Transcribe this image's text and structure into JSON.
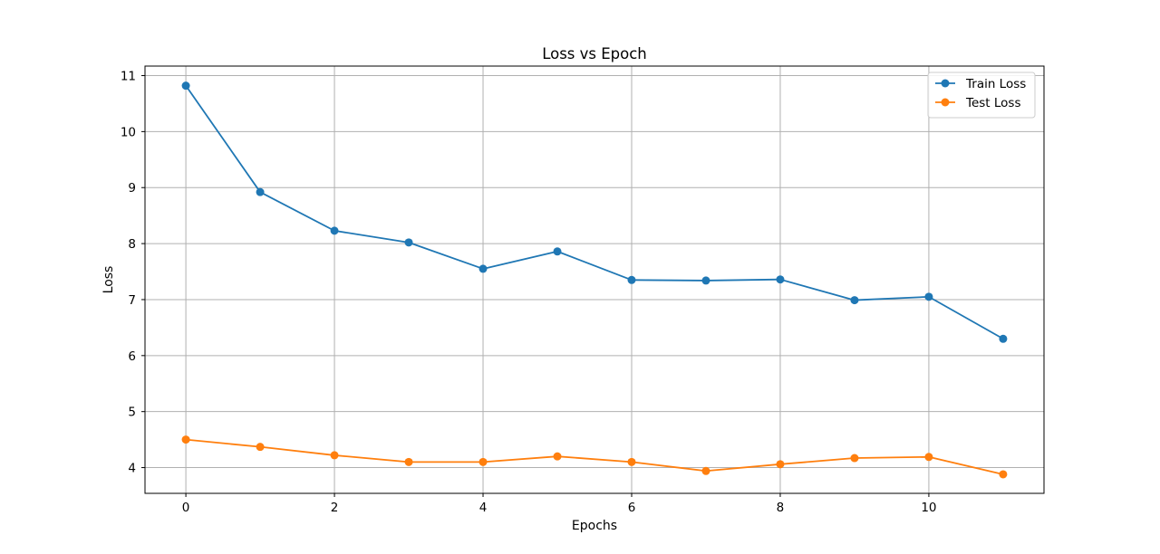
{
  "chart_data": {
    "type": "line",
    "title": "Loss vs Epoch",
    "xlabel": "Epochs",
    "ylabel": "Loss",
    "x": [
      0,
      1,
      2,
      3,
      4,
      5,
      6,
      7,
      8,
      9,
      10,
      11
    ],
    "xlim": [
      -0.55,
      11.55
    ],
    "ylim": [
      3.54,
      11.17
    ],
    "x_ticks": [
      0,
      2,
      4,
      6,
      8,
      10
    ],
    "y_ticks": [
      4,
      5,
      6,
      7,
      8,
      9,
      10,
      11
    ],
    "grid": true,
    "legend_position": "top-right",
    "series": [
      {
        "name": "Train Loss",
        "color": "#1f77b4",
        "marker": "circle",
        "values": [
          10.82,
          8.92,
          8.23,
          8.02,
          7.55,
          7.86,
          7.35,
          7.34,
          7.36,
          6.99,
          7.05,
          6.3
        ]
      },
      {
        "name": "Test Loss",
        "color": "#ff7f0e",
        "marker": "circle",
        "values": [
          4.5,
          4.37,
          4.22,
          4.1,
          4.1,
          4.2,
          4.1,
          3.94,
          4.06,
          4.17,
          4.19,
          3.88
        ]
      }
    ]
  }
}
